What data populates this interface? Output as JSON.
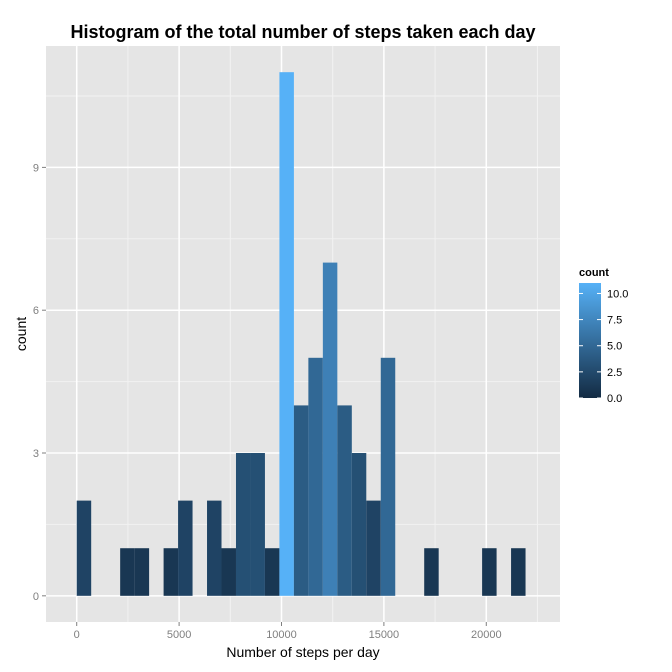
{
  "chart_data": {
    "type": "bar",
    "title": "Histogram of the total number of steps taken each day",
    "xlabel": "Number of steps per day",
    "ylabel": "count",
    "binwidth": 707,
    "bins": [
      {
        "x": 353,
        "count": 2
      },
      {
        "x": 2475,
        "count": 1
      },
      {
        "x": 3182,
        "count": 1
      },
      {
        "x": 4596,
        "count": 1
      },
      {
        "x": 5303,
        "count": 2
      },
      {
        "x": 6717,
        "count": 2
      },
      {
        "x": 7424,
        "count": 1
      },
      {
        "x": 8131,
        "count": 3
      },
      {
        "x": 8838,
        "count": 3
      },
      {
        "x": 9545,
        "count": 1
      },
      {
        "x": 10252,
        "count": 11
      },
      {
        "x": 10959,
        "count": 4
      },
      {
        "x": 11666,
        "count": 5
      },
      {
        "x": 12373,
        "count": 7
      },
      {
        "x": 13080,
        "count": 4
      },
      {
        "x": 13787,
        "count": 3
      },
      {
        "x": 14494,
        "count": 2
      },
      {
        "x": 15201,
        "count": 5
      },
      {
        "x": 17322,
        "count": 1
      },
      {
        "x": 20150,
        "count": 1
      },
      {
        "x": 21564,
        "count": 1
      }
    ],
    "xlim": [
      -1500,
      23600
    ],
    "ylim": [
      -0.55,
      11.55
    ],
    "x_ticks": [
      0,
      5000,
      10000,
      15000,
      20000
    ],
    "x_tick_labels": [
      "0",
      "5000",
      "10000",
      "15000",
      "20000"
    ],
    "y_ticks": [
      0,
      3,
      6,
      9
    ],
    "y_tick_labels": [
      "0",
      "3",
      "6",
      "9"
    ],
    "grid": true,
    "legend": {
      "title": "count",
      "placement": "right",
      "breaks": [
        10,
        7.5,
        5,
        2.5,
        0
      ],
      "labels": [
        "10.0",
        "7.5",
        "5.0",
        "2.5",
        "0.0"
      ],
      "range": [
        0,
        11
      ]
    },
    "colors": {
      "low": "#132B43",
      "high": "#56B1F7",
      "panel": "#E5E5E5",
      "grid_major": "#FFFFFF",
      "grid_minor": "#F2F2F2",
      "tick_label": "#7F7F7F"
    }
  }
}
